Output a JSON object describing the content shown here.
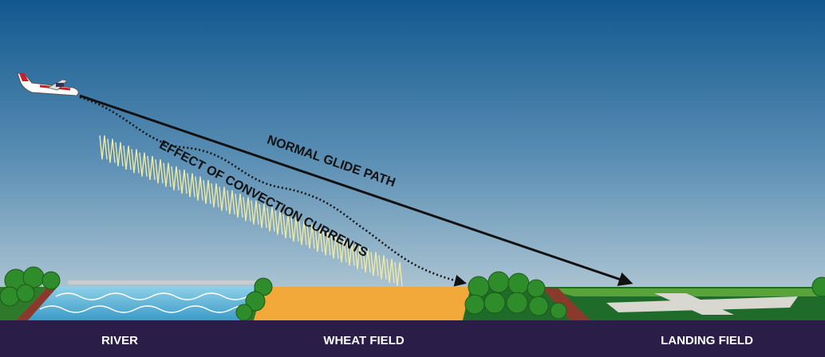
{
  "diagram": {
    "paths": {
      "normal": "NORMAL GLIDE PATH",
      "convection": "EFFECT OF CONVECTION CURRENTS"
    },
    "ground": [
      "RIVER",
      "WHEAT FIELD",
      "LANDING FIELD"
    ]
  }
}
